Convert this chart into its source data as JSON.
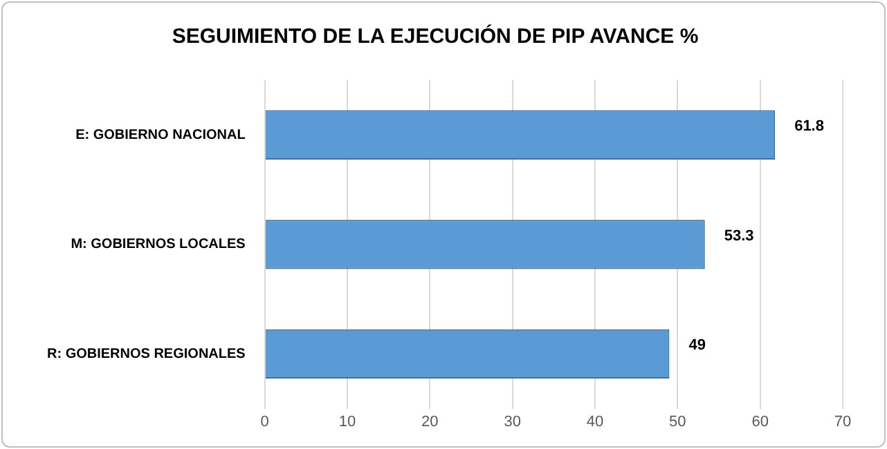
{
  "chart_data": {
    "type": "bar",
    "orientation": "horizontal",
    "title": "SEGUIMIENTO DE LA EJECUCIÓN DE PIP AVANCE %",
    "categories": [
      "E: GOBIERNO NACIONAL",
      "M: GOBIERNOS LOCALES",
      "R: GOBIERNOS REGIONALES"
    ],
    "values": [
      61.8,
      53.3,
      49
    ],
    "color": "#5b9bd5",
    "xlim": [
      0,
      70
    ],
    "xticks": [
      0,
      10,
      20,
      30,
      40,
      50,
      60,
      70
    ],
    "grid": "x",
    "data_labels": true,
    "legend": false
  }
}
